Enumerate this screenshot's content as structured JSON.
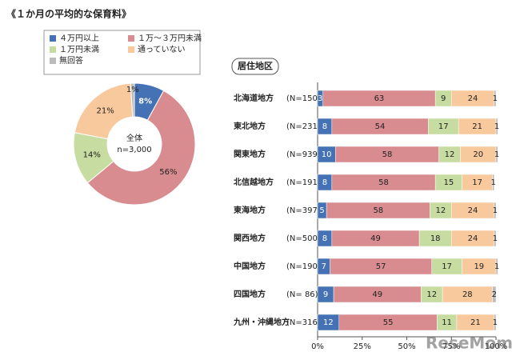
{
  "title": "《１か月の平均的な保育料》",
  "watermark": "ReseMom",
  "chart_data": [
    {
      "type": "donut",
      "categories": [
        "４万円以上",
        "１万～３万円未満",
        "１万円未満",
        "通っていない",
        "無回答"
      ],
      "values": [
        8,
        56,
        14,
        21,
        1
      ],
      "value_labels": [
        "8%",
        "56%",
        "14%",
        "21%",
        "1%"
      ],
      "colors": [
        "#4472b4",
        "#d98c8f",
        "#c7dca0",
        "#f8c99c",
        "#bcbcbc"
      ],
      "center_labels": [
        "全体",
        "n=3,000"
      ]
    },
    {
      "type": "stacked-bar",
      "group_label": "居住地区",
      "categories": [
        "北海道地方",
        "東北地方",
        "関東地方",
        "北信越地方",
        "東海地方",
        "関西地方",
        "中国地方",
        "四国地方",
        "九州・沖縄地方"
      ],
      "sample_sizes": [
        "(N=150)",
        "(N=231)",
        "(N=939)",
        "(N=191)",
        "(N=397)",
        "(N=500)",
        "(N=190)",
        "(N= 86)",
        "(N=316)"
      ],
      "series": [
        {
          "color": "#4472b4",
          "values": [
            3,
            8,
            10,
            8,
            5,
            8,
            7,
            9,
            12
          ]
        },
        {
          "color": "#d98c8f",
          "values": [
            63,
            54,
            58,
            58,
            58,
            49,
            57,
            49,
            55
          ]
        },
        {
          "color": "#c7dca0",
          "values": [
            9,
            17,
            12,
            15,
            12,
            18,
            17,
            12,
            11
          ]
        },
        {
          "color": "#f8c99c",
          "values": [
            24,
            21,
            20,
            17,
            24,
            24,
            19,
            28,
            21
          ]
        },
        {
          "color": "#bcbcbc",
          "values": [
            1,
            1,
            1,
            1,
            1,
            1,
            1,
            2,
            1
          ]
        }
      ],
      "xlim": [
        0,
        100
      ],
      "xticks": [
        {
          "value": 0,
          "label": "0%"
        },
        {
          "value": 25,
          "label": "25%"
        },
        {
          "value": 50,
          "label": "50%"
        },
        {
          "value": 75,
          "label": "75%"
        },
        {
          "value": 100,
          "label": "100%"
        }
      ]
    }
  ]
}
